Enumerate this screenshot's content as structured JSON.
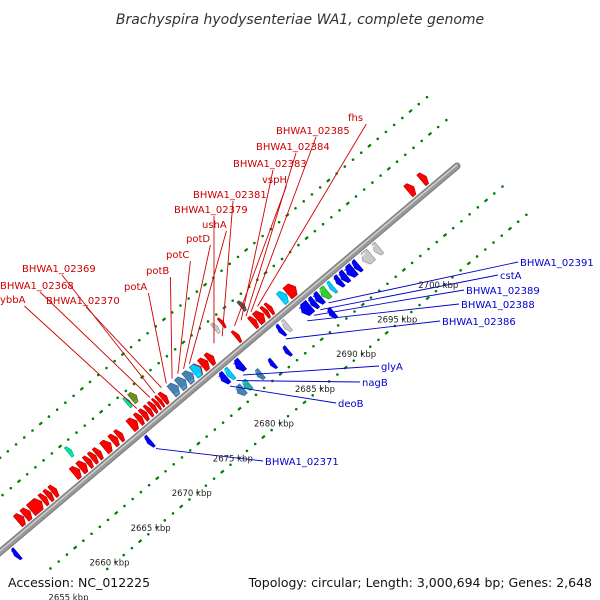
{
  "title": "Brachyspira hyodysenteriae WA1, complete genome",
  "footer": {
    "accession": "Accession: NC_012225",
    "topology": "Topology: circular; Length: 3,000,694 bp; Genes: 2,648"
  },
  "colors": {
    "forward_gene": "#ff0000",
    "reverse_gene": "#0000ff",
    "forward_label": "#cc0000",
    "reverse_label": "#0000cc",
    "backbone": "#999999",
    "tick_dots": "#008000",
    "rna": "#00ccff",
    "steelblue": "#4682b4",
    "grey": "#c8c8c8",
    "green": "#33cc33",
    "olive": "#6b8e23",
    "teal": "#20b2aa",
    "mint": "#00e6a0"
  },
  "scale_labels": [
    {
      "text": "2655 kbp",
      "pos": 2655
    },
    {
      "text": "2660 kbp",
      "pos": 2660
    },
    {
      "text": "2665 kbp",
      "pos": 2665
    },
    {
      "text": "2670 kbp",
      "pos": 2670
    },
    {
      "text": "2675 kbp",
      "pos": 2675
    },
    {
      "text": "2680 kbp",
      "pos": 2680
    },
    {
      "text": "2685 kbp",
      "pos": 2685
    },
    {
      "text": "2690 kbp",
      "pos": 2690
    },
    {
      "text": "2695 kbp",
      "pos": 2695
    },
    {
      "text": "2700 kbp",
      "pos": 2700
    }
  ],
  "top_labels": [
    {
      "text": "ybbA",
      "gene_pos": 2672.6
    },
    {
      "text": "BHWA1_02368",
      "gene_pos": 2674.2
    },
    {
      "text": "BHWA1_02369",
      "gene_pos": 2674.8
    },
    {
      "text": "BHWA1_02370",
      "gene_pos": 2675.6
    },
    {
      "text": "potA",
      "gene_pos": 2676.2
    },
    {
      "text": "potB",
      "gene_pos": 2676.9
    },
    {
      "text": "potC",
      "gene_pos": 2677.6
    },
    {
      "text": "potD",
      "gene_pos": 2678.3
    },
    {
      "text": "ushA",
      "gene_pos": 2679.0
    },
    {
      "text": "BHWA1_02379",
      "gene_pos": 2682.0
    },
    {
      "text": "BHWA1_02381",
      "gene_pos": 2683.0
    },
    {
      "text": "vspH",
      "gene_pos": 2684.5
    },
    {
      "text": "BHWA1_02383",
      "gene_pos": 2685.3
    },
    {
      "text": "BHWA1_02384",
      "gene_pos": 2685.9
    },
    {
      "text": "BHWA1_02385",
      "gene_pos": 2686.5
    },
    {
      "text": "fhs",
      "gene_pos": 2687.3
    }
  ],
  "bottom_labels": [
    {
      "text": "BHWA1_02371",
      "gene_pos": 2671.8
    },
    {
      "text": "deoB",
      "gene_pos": 2680.8
    },
    {
      "text": "nagB",
      "gene_pos": 2681.6
    },
    {
      "text": "glyA",
      "gene_pos": 2682.4
    },
    {
      "text": "BHWA1_02386",
      "gene_pos": 2687.6
    },
    {
      "text": "BHWA1_02388",
      "gene_pos": 2690.2
    },
    {
      "text": "BHWA1_02389",
      "gene_pos": 2691.0
    },
    {
      "text": "cstA",
      "gene_pos": 2691.8
    },
    {
      "text": "BHWA1_02391",
      "gene_pos": 2692.8
    }
  ],
  "forward_genes": [
    {
      "start": 2657.5,
      "end": 2658.2,
      "color": "#ff0000"
    },
    {
      "start": 2658.3,
      "end": 2659.0,
      "color": "#ff0000"
    },
    {
      "start": 2659.1,
      "end": 2660.4,
      "color": "#ff0000"
    },
    {
      "start": 2660.5,
      "end": 2661.0,
      "color": "#ff0000"
    },
    {
      "start": 2661.1,
      "end": 2661.6,
      "color": "#ff0000"
    },
    {
      "start": 2661.7,
      "end": 2662.2,
      "color": "#ff0000"
    },
    {
      "start": 2664.3,
      "end": 2665.0,
      "color": "#ff0000"
    },
    {
      "start": 2665.1,
      "end": 2665.8,
      "color": "#ff0000"
    },
    {
      "start": 2665.9,
      "end": 2666.4,
      "color": "#ff0000"
    },
    {
      "start": 2666.5,
      "end": 2667.0,
      "color": "#ff0000"
    },
    {
      "start": 2667.1,
      "end": 2667.6,
      "color": "#ff0000"
    },
    {
      "start": 2668.0,
      "end": 2668.8,
      "color": "#ff0000"
    },
    {
      "start": 2669.0,
      "end": 2669.6,
      "color": "#ff0000"
    },
    {
      "start": 2669.7,
      "end": 2670.2,
      "color": "#ff0000"
    },
    {
      "start": 2671.2,
      "end": 2672.0,
      "color": "#ff0000"
    },
    {
      "start": 2672.1,
      "end": 2672.6,
      "color": "#ff0000"
    },
    {
      "start": 2672.7,
      "end": 2673.2,
      "color": "#ff0000"
    },
    {
      "start": 2673.3,
      "end": 2673.7,
      "color": "#ff0000"
    },
    {
      "start": 2673.8,
      "end": 2674.2,
      "color": "#ff0000"
    },
    {
      "start": 2674.3,
      "end": 2674.6,
      "color": "#ff0000"
    },
    {
      "start": 2674.7,
      "end": 2675.0,
      "color": "#ff0000"
    },
    {
      "start": 2675.1,
      "end": 2675.6,
      "color": "#ff0000"
    },
    {
      "start": 2679.0,
      "end": 2679.8,
      "color": "#ff0000"
    },
    {
      "start": 2679.9,
      "end": 2680.6,
      "color": "#ff0000"
    },
    {
      "start": 2680.7,
      "end": 2681.3,
      "color": "#ff0000"
    },
    {
      "start": 2684.0,
      "end": 2684.4,
      "color": "#ff0000"
    },
    {
      "start": 2686.0,
      "end": 2686.5,
      "color": "#ff0000"
    },
    {
      "start": 2686.6,
      "end": 2687.4,
      "color": "#ff0000"
    },
    {
      "start": 2687.5,
      "end": 2687.9,
      "color": "#ff0000"
    },
    {
      "start": 2688.0,
      "end": 2688.4,
      "color": "#ff0000"
    },
    {
      "start": 2690.3,
      "end": 2691.3,
      "color": "#ff0000"
    },
    {
      "start": 2705.0,
      "end": 2705.7,
      "color": "#ff0000"
    },
    {
      "start": 2706.6,
      "end": 2707.2,
      "color": "#ff0000"
    },
    {
      "start": 2676.2,
      "end": 2677.0,
      "color": "#4682b4"
    },
    {
      "start": 2677.1,
      "end": 2677.9,
      "color": "#4682b4"
    },
    {
      "start": 2678.0,
      "end": 2678.8,
      "color": "#4682b4"
    },
    {
      "start": 2678.9,
      "end": 2679.7,
      "color": "#00ccff"
    },
    {
      "start": 2689.5,
      "end": 2690.2,
      "color": "#00ccff"
    }
  ],
  "forward_inner_genes": [
    {
      "start": 2672.9,
      "end": 2673.5,
      "color": "#6b8e23"
    },
    {
      "start": 2672.3,
      "end": 2672.7,
      "color": "#00e6a0"
    },
    {
      "start": 2686.2,
      "end": 2686.6,
      "color": "#555555"
    },
    {
      "start": 2683.0,
      "end": 2683.4,
      "color": "#c8c8c8"
    },
    {
      "start": 2683.8,
      "end": 2684.1,
      "color": "#ff0000"
    },
    {
      "start": 2665.2,
      "end": 2665.6,
      "color": "#00e6a0"
    },
    {
      "start": 2655.6,
      "end": 2656.0,
      "color": "#00e6a0"
    }
  ],
  "reverse_genes": [
    {
      "start": 2655.2,
      "end": 2655.6,
      "color": "#0000ff"
    },
    {
      "start": 2671.4,
      "end": 2671.8,
      "color": "#0000ff"
    },
    {
      "start": 2680.4,
      "end": 2681.0,
      "color": "#0000ff"
    },
    {
      "start": 2681.1,
      "end": 2681.6,
      "color": "#00ccff"
    },
    {
      "start": 2682.2,
      "end": 2682.9,
      "color": "#0000ff"
    },
    {
      "start": 2687.4,
      "end": 2687.8,
      "color": "#0000ff"
    },
    {
      "start": 2688.0,
      "end": 2688.5,
      "color": "#c8c8c8"
    },
    {
      "start": 2690.2,
      "end": 2691.2,
      "color": "#0000ff"
    },
    {
      "start": 2691.3,
      "end": 2691.8,
      "color": "#0000ff"
    },
    {
      "start": 2691.9,
      "end": 2692.5,
      "color": "#0000ff"
    },
    {
      "start": 2692.6,
      "end": 2693.3,
      "color": "#33cc33"
    },
    {
      "start": 2693.6,
      "end": 2694.0,
      "color": "#00ccff"
    },
    {
      "start": 2694.4,
      "end": 2694.9,
      "color": "#0000ff"
    },
    {
      "start": 2695.0,
      "end": 2695.6,
      "color": "#0000ff"
    },
    {
      "start": 2695.7,
      "end": 2696.5,
      "color": "#0000ff"
    },
    {
      "start": 2696.6,
      "end": 2697.1,
      "color": "#0000ff"
    },
    {
      "start": 2697.6,
      "end": 2698.6,
      "color": "#c8c8c8"
    },
    {
      "start": 2699.0,
      "end": 2699.6,
      "color": "#c8c8c8"
    }
  ],
  "reverse_inner_genes": [
    {
      "start": 2680.8,
      "end": 2681.5,
      "color": "#4682b4"
    },
    {
      "start": 2681.6,
      "end": 2682.2,
      "color": "#20b2aa"
    },
    {
      "start": 2683.2,
      "end": 2683.7,
      "color": "#4682b4"
    },
    {
      "start": 2684.8,
      "end": 2685.2,
      "color": "#0000ff"
    },
    {
      "start": 2692.0,
      "end": 2692.5,
      "color": "#0000ff"
    },
    {
      "start": 2686.6,
      "end": 2687.0,
      "color": "#0000ff"
    }
  ]
}
